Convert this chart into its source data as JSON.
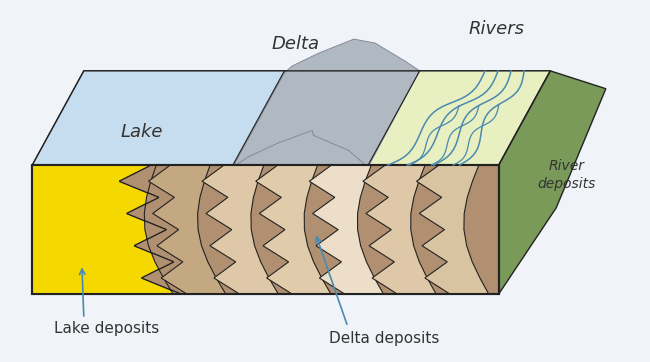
{
  "background_color": "#f0f4f8",
  "lake_color": "#c5ddef",
  "delta_gray": "#b0b8c2",
  "river_surface_color": "#e8efc0",
  "river_side_color": "#7a9a5a",
  "lake_deposit_color": "#f5d800",
  "delta_deposit_light": "#dfc8a8",
  "delta_deposit_dark": "#b09070",
  "delta_deposit_lightest": "#ecdec8",
  "river_line_color": "#4a8ab0",
  "label_color": "#333333",
  "arrow_color": "#4a8ab0",
  "outline_color": "#222222",
  "labels": {
    "lake": "Lake",
    "delta": "Delta",
    "rivers": "Rivers",
    "river_deposits": "River\ndeposits",
    "lake_deposits": "Lake deposits",
    "delta_deposits": "Delta deposits"
  }
}
